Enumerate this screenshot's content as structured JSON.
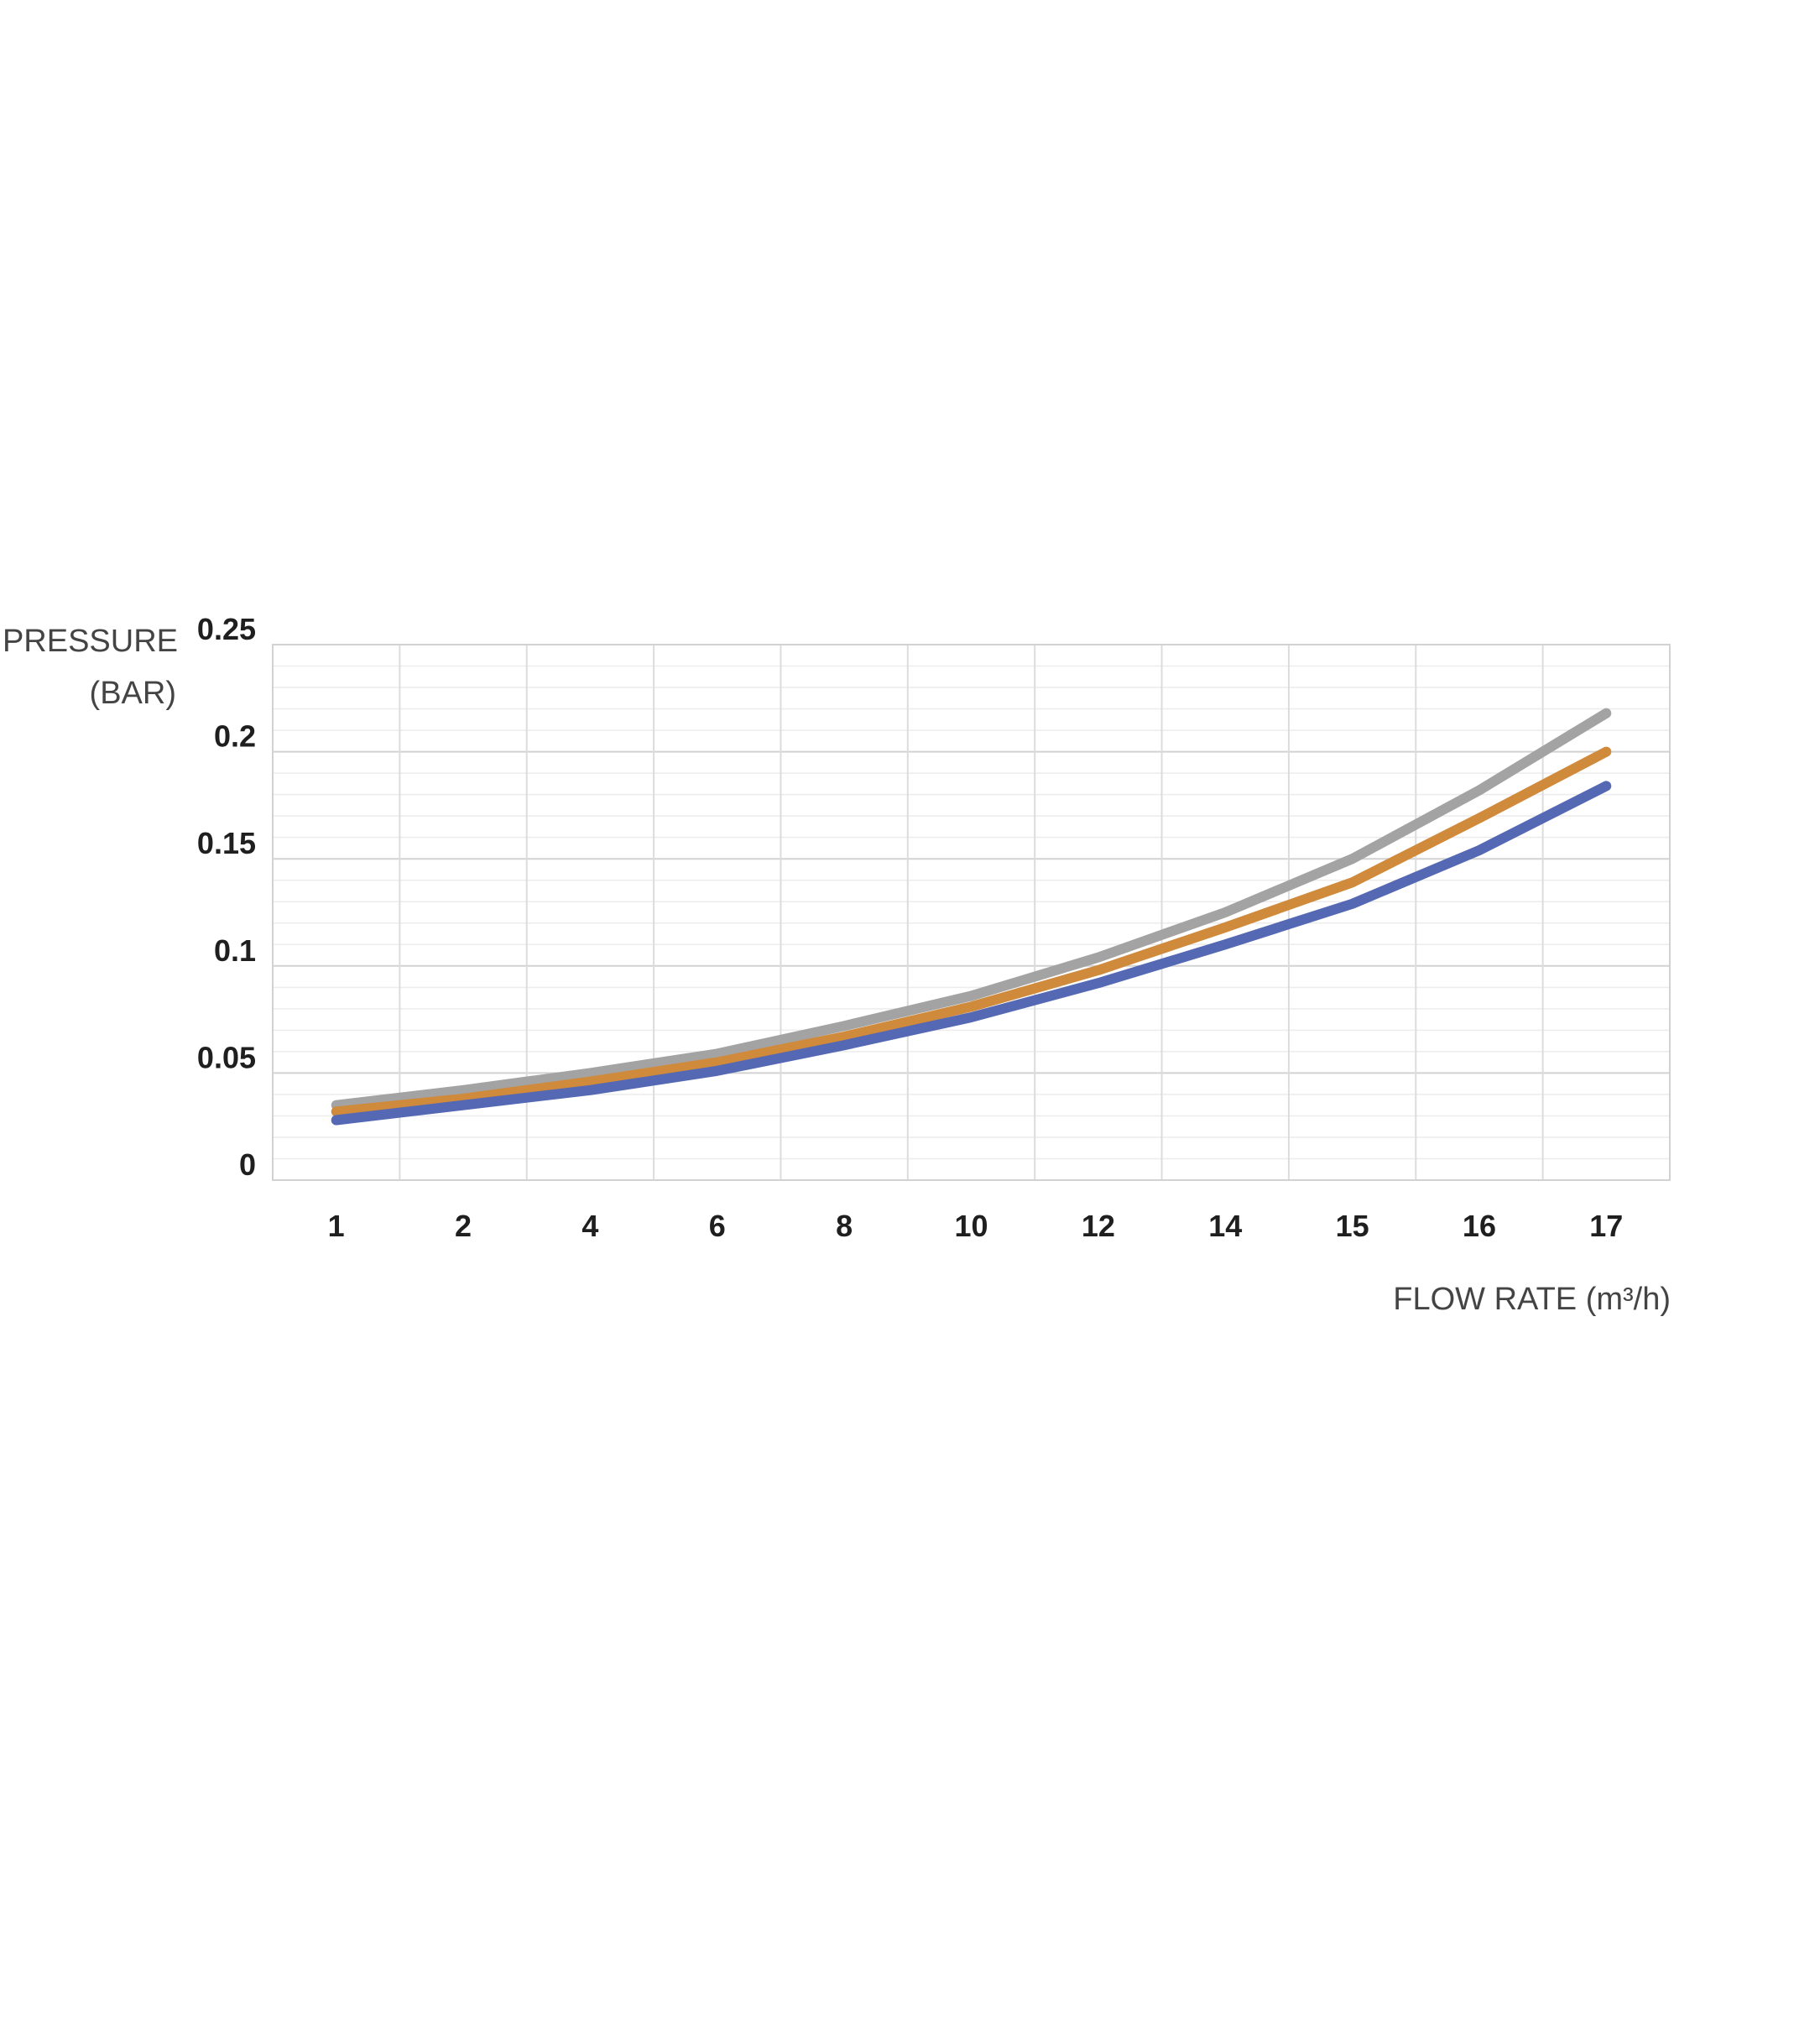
{
  "chart_data": {
    "type": "line",
    "ylabel_lines": [
      "PRESSURE",
      "(BAR)"
    ],
    "xlabel": "FLOW RATE (m³/h)",
    "categories": [
      "1",
      "2",
      "4",
      "6",
      "8",
      "10",
      "12",
      "14",
      "15",
      "16",
      "17"
    ],
    "y_ticks": [
      "0",
      "0.05",
      "0.1",
      "0.15",
      "0.2",
      "0.25"
    ],
    "ylim": [
      0,
      0.25
    ],
    "y_minor_step": 0.01,
    "grid": true,
    "legend": "none",
    "series": [
      {
        "color": "#a3a3a3",
        "values": [
          0.035,
          0.042,
          0.05,
          0.059,
          0.072,
          0.086,
          0.104,
          0.125,
          0.15,
          0.182,
          0.218
        ]
      },
      {
        "color": "#d08a3c",
        "values": [
          0.032,
          0.038,
          0.046,
          0.055,
          0.067,
          0.081,
          0.098,
          0.118,
          0.139,
          0.169,
          0.2
        ]
      },
      {
        "color": "#5468b4",
        "values": [
          0.028,
          0.035,
          0.042,
          0.051,
          0.063,
          0.076,
          0.092,
          0.11,
          0.129,
          0.154,
          0.184
        ]
      }
    ]
  }
}
